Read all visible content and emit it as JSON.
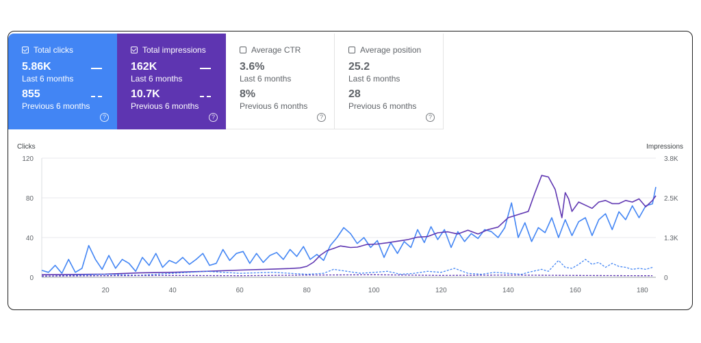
{
  "cards": [
    {
      "label": "Total clicks",
      "checked": true,
      "value": "5.86K",
      "period": "Last 6 months",
      "prev_value": "855",
      "prev_period": "Previous 6 months",
      "help": "?"
    },
    {
      "label": "Total impressions",
      "checked": true,
      "value": "162K",
      "period": "Last 6 months",
      "prev_value": "10.7K",
      "prev_period": "Previous 6 months",
      "help": "?"
    },
    {
      "label": "Average CTR",
      "checked": false,
      "value": "3.6%",
      "period": "Last 6 months",
      "prev_value": "8%",
      "prev_period": "Previous 6 months",
      "help": "?"
    },
    {
      "label": "Average position",
      "checked": false,
      "value": "25.2",
      "period": "Last 6 months",
      "prev_value": "28",
      "prev_period": "Previous 6 months",
      "help": "?"
    }
  ],
  "colors": {
    "clicks": "#4285f4",
    "impressions": "#5e35b1",
    "grid": "#e8eaed"
  },
  "chart_data": {
    "type": "line",
    "ylabel": "Clicks",
    "y2label": "Impressions",
    "ylim": [
      0,
      120
    ],
    "y2lim": [
      0,
      3800
    ],
    "y_ticks": [
      "0",
      "40",
      "80",
      "120"
    ],
    "y2_ticks": [
      "0",
      "1.3K",
      "2.5K",
      "3.8K"
    ],
    "xlim": [
      1,
      184
    ],
    "x_ticks": [
      "20",
      "40",
      "60",
      "80",
      "100",
      "120",
      "140",
      "160",
      "180"
    ],
    "grid": true,
    "series": [
      {
        "key": "clicks_current",
        "style": "solid",
        "color": "#4285f4",
        "points": [
          [
            1,
            7
          ],
          [
            3,
            5
          ],
          [
            5,
            12
          ],
          [
            7,
            4
          ],
          [
            9,
            18
          ],
          [
            11,
            5
          ],
          [
            13,
            9
          ],
          [
            15,
            32
          ],
          [
            17,
            18
          ],
          [
            19,
            8
          ],
          [
            21,
            22
          ],
          [
            23,
            9
          ],
          [
            25,
            18
          ],
          [
            27,
            14
          ],
          [
            29,
            6
          ],
          [
            31,
            20
          ],
          [
            33,
            12
          ],
          [
            35,
            24
          ],
          [
            37,
            10
          ],
          [
            39,
            17
          ],
          [
            41,
            14
          ],
          [
            43,
            20
          ],
          [
            45,
            13
          ],
          [
            47,
            18
          ],
          [
            49,
            24
          ],
          [
            51,
            12
          ],
          [
            53,
            14
          ],
          [
            55,
            28
          ],
          [
            57,
            17
          ],
          [
            59,
            24
          ],
          [
            61,
            26
          ],
          [
            63,
            14
          ],
          [
            65,
            24
          ],
          [
            67,
            15
          ],
          [
            69,
            22
          ],
          [
            71,
            25
          ],
          [
            73,
            18
          ],
          [
            75,
            28
          ],
          [
            77,
            21
          ],
          [
            79,
            31
          ],
          [
            81,
            18
          ],
          [
            83,
            23
          ],
          [
            85,
            17
          ],
          [
            87,
            32
          ],
          [
            89,
            40
          ],
          [
            91,
            50
          ],
          [
            93,
            44
          ],
          [
            95,
            34
          ],
          [
            97,
            40
          ],
          [
            99,
            30
          ],
          [
            101,
            37
          ],
          [
            103,
            20
          ],
          [
            105,
            35
          ],
          [
            107,
            24
          ],
          [
            109,
            36
          ],
          [
            111,
            30
          ],
          [
            113,
            48
          ],
          [
            115,
            35
          ],
          [
            117,
            51
          ],
          [
            119,
            38
          ],
          [
            121,
            48
          ],
          [
            123,
            30
          ],
          [
            125,
            46
          ],
          [
            127,
            36
          ],
          [
            129,
            44
          ],
          [
            131,
            39
          ],
          [
            133,
            48
          ],
          [
            135,
            46
          ],
          [
            137,
            40
          ],
          [
            139,
            50
          ],
          [
            141,
            75
          ],
          [
            143,
            40
          ],
          [
            145,
            55
          ],
          [
            147,
            36
          ],
          [
            149,
            50
          ],
          [
            151,
            45
          ],
          [
            153,
            60
          ],
          [
            155,
            40
          ],
          [
            157,
            58
          ],
          [
            159,
            42
          ],
          [
            161,
            56
          ],
          [
            163,
            60
          ],
          [
            165,
            42
          ],
          [
            167,
            58
          ],
          [
            169,
            64
          ],
          [
            171,
            48
          ],
          [
            173,
            66
          ],
          [
            175,
            58
          ],
          [
            177,
            72
          ],
          [
            179,
            60
          ],
          [
            181,
            72
          ],
          [
            183,
            74
          ],
          [
            184,
            91
          ]
        ]
      },
      {
        "key": "impressions_current",
        "style": "solid",
        "color": "#5e35b1",
        "points": [
          [
            1,
            80
          ],
          [
            10,
            90
          ],
          [
            20,
            100
          ],
          [
            30,
            140
          ],
          [
            40,
            160
          ],
          [
            50,
            190
          ],
          [
            60,
            230
          ],
          [
            70,
            260
          ],
          [
            75,
            280
          ],
          [
            78,
            300
          ],
          [
            80,
            350
          ],
          [
            82,
            480
          ],
          [
            84,
            700
          ],
          [
            86,
            850
          ],
          [
            88,
            920
          ],
          [
            90,
            1000
          ],
          [
            93,
            950
          ],
          [
            95,
            960
          ],
          [
            98,
            1050
          ],
          [
            101,
            1060
          ],
          [
            104,
            1100
          ],
          [
            107,
            1150
          ],
          [
            110,
            1200
          ],
          [
            113,
            1280
          ],
          [
            116,
            1300
          ],
          [
            119,
            1420
          ],
          [
            122,
            1450
          ],
          [
            125,
            1380
          ],
          [
            128,
            1500
          ],
          [
            131,
            1380
          ],
          [
            134,
            1520
          ],
          [
            137,
            1600
          ],
          [
            140,
            1900
          ],
          [
            143,
            2000
          ],
          [
            146,
            2100
          ],
          [
            148,
            2700
          ],
          [
            150,
            3250
          ],
          [
            152,
            3200
          ],
          [
            154,
            2800
          ],
          [
            156,
            1900
          ],
          [
            157,
            2700
          ],
          [
            158,
            2500
          ],
          [
            159,
            2100
          ],
          [
            161,
            2400
          ],
          [
            163,
            2300
          ],
          [
            165,
            2200
          ],
          [
            167,
            2400
          ],
          [
            169,
            2450
          ],
          [
            171,
            2350
          ],
          [
            173,
            2350
          ],
          [
            175,
            2450
          ],
          [
            177,
            2400
          ],
          [
            179,
            2500
          ],
          [
            181,
            2250
          ],
          [
            183,
            2450
          ],
          [
            184,
            2600
          ]
        ]
      },
      {
        "key": "clicks_previous",
        "style": "dashed",
        "color": "#4285f4",
        "points": [
          [
            1,
            1
          ],
          [
            10,
            2
          ],
          [
            20,
            3
          ],
          [
            30,
            2
          ],
          [
            40,
            4
          ],
          [
            50,
            6
          ],
          [
            60,
            4
          ],
          [
            70,
            5
          ],
          [
            80,
            3
          ],
          [
            85,
            4
          ],
          [
            88,
            8
          ],
          [
            92,
            6
          ],
          [
            96,
            4
          ],
          [
            100,
            5
          ],
          [
            104,
            6
          ],
          [
            108,
            3
          ],
          [
            112,
            4
          ],
          [
            116,
            6
          ],
          [
            120,
            5
          ],
          [
            124,
            9
          ],
          [
            128,
            4
          ],
          [
            132,
            3
          ],
          [
            136,
            5
          ],
          [
            140,
            4
          ],
          [
            144,
            3
          ],
          [
            146,
            5
          ],
          [
            150,
            8
          ],
          [
            152,
            6
          ],
          [
            155,
            17
          ],
          [
            157,
            10
          ],
          [
            159,
            9
          ],
          [
            161,
            13
          ],
          [
            163,
            18
          ],
          [
            165,
            13
          ],
          [
            167,
            15
          ],
          [
            169,
            10
          ],
          [
            171,
            14
          ],
          [
            173,
            11
          ],
          [
            175,
            10
          ],
          [
            177,
            8
          ],
          [
            179,
            9
          ],
          [
            181,
            8
          ],
          [
            183,
            10
          ]
        ]
      },
      {
        "key": "impressions_previous",
        "style": "dashed",
        "color": "#5e35b1",
        "points": [
          [
            1,
            40
          ],
          [
            20,
            50
          ],
          [
            40,
            60
          ],
          [
            60,
            50
          ],
          [
            80,
            70
          ],
          [
            100,
            80
          ],
          [
            120,
            60
          ],
          [
            140,
            70
          ],
          [
            160,
            60
          ],
          [
            180,
            50
          ],
          [
            183,
            50
          ]
        ]
      }
    ]
  }
}
